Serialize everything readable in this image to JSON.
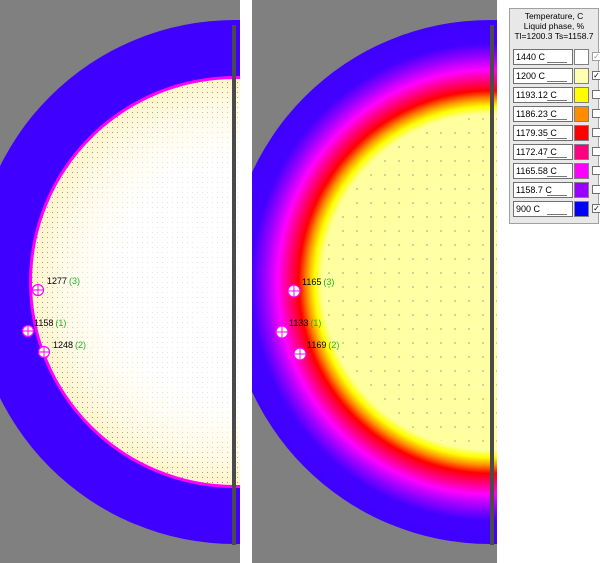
{
  "legend": {
    "title_lines": [
      "Temperature, C",
      "Liquid phase, %",
      "Tl=1200.3 Ts=1158.7"
    ],
    "items": [
      {
        "label": "1440 C",
        "color": "#ffffff",
        "checked": true,
        "disabled": true
      },
      {
        "label": "1200 C",
        "color": "#ffffb0",
        "checked": true,
        "disabled": false
      },
      {
        "label": "1193.12 C",
        "color": "#ffff00",
        "checked": false,
        "disabled": false
      },
      {
        "label": "1186.23 C",
        "color": "#ff8c00",
        "checked": false,
        "disabled": false
      },
      {
        "label": "1179.35 C",
        "color": "#ff0000",
        "checked": false,
        "disabled": false
      },
      {
        "label": "1172.47 C",
        "color": "#ff0080",
        "checked": false,
        "disabled": false
      },
      {
        "label": "1165.58 C",
        "color": "#ff00ff",
        "checked": false,
        "disabled": false
      },
      {
        "label": "1158.7 C",
        "color": "#9900ff",
        "checked": false,
        "disabled": false
      },
      {
        "label": "900 C",
        "color": "#0000ff",
        "checked": true,
        "disabled": false
      }
    ]
  },
  "left_panel": {
    "probes": [
      {
        "value": "1277",
        "index": "(3)"
      },
      {
        "value": "1158",
        "index": "(1)"
      },
      {
        "value": "1248",
        "index": "(2)"
      }
    ]
  },
  "right_panel": {
    "probes": [
      {
        "value": "1165",
        "index": "(3)"
      },
      {
        "value": "1133",
        "index": "(1)"
      },
      {
        "value": "1169",
        "index": "(2)"
      }
    ]
  }
}
